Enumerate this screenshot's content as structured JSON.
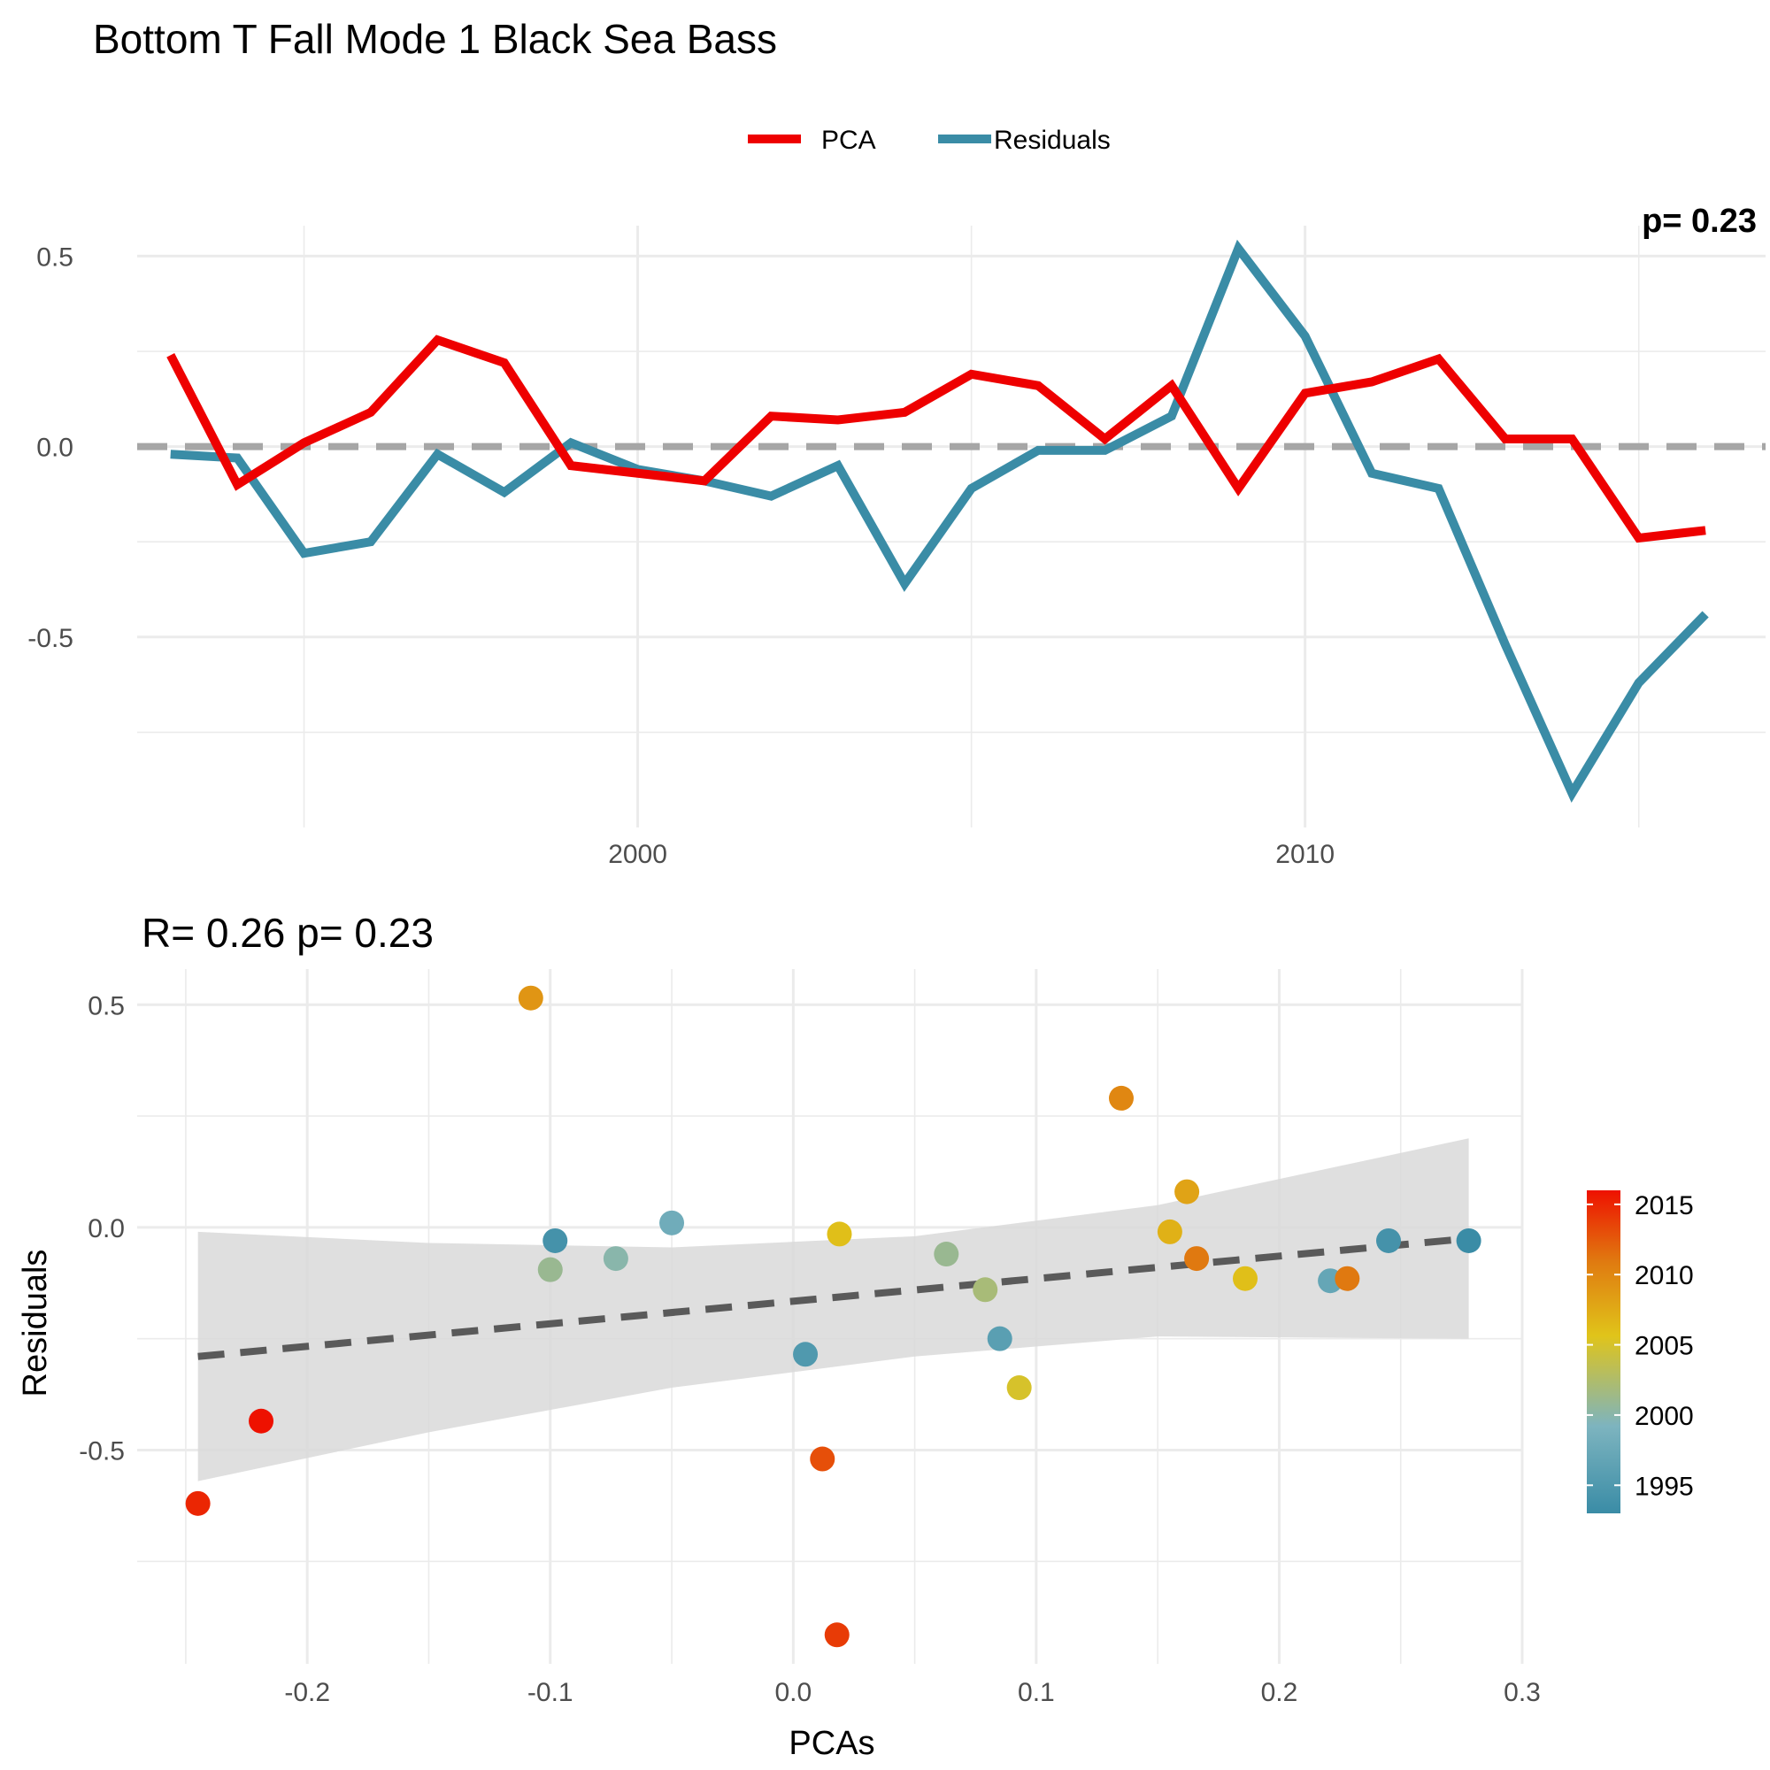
{
  "title": "Bottom T Fall Mode 1 Black Sea Bass",
  "chart_data": [
    {
      "type": "line",
      "legend": {
        "position": "top",
        "entries": [
          "PCA",
          "Residuals"
        ]
      },
      "x": [
        1993,
        1994,
        1995,
        1996,
        1997,
        1998,
        1999,
        2000,
        2001,
        2002,
        2003,
        2004,
        2005,
        2006,
        2007,
        2008,
        2009,
        2010,
        2011,
        2012,
        2013,
        2014,
        2015,
        2016
      ],
      "series": [
        {
          "name": "PCA",
          "color": "#ee0000",
          "values": [
            0.24,
            -0.1,
            0.01,
            0.09,
            0.28,
            0.22,
            -0.05,
            -0.07,
            -0.09,
            0.08,
            0.07,
            0.09,
            0.19,
            0.16,
            0.02,
            0.16,
            -0.11,
            0.14,
            0.17,
            0.23,
            0.02,
            0.02,
            -0.24,
            -0.22
          ]
        },
        {
          "name": "Residuals",
          "color": "#3a8ca6",
          "values": [
            -0.02,
            -0.03,
            -0.28,
            -0.25,
            -0.02,
            -0.12,
            0.01,
            -0.06,
            -0.09,
            -0.13,
            -0.05,
            -0.36,
            -0.11,
            -0.01,
            -0.01,
            0.08,
            0.52,
            0.29,
            -0.07,
            -0.11,
            -0.52,
            -0.91,
            -0.62,
            -0.44
          ]
        }
      ],
      "hline": 0,
      "xlim": [
        1992.5,
        2016.9
      ],
      "ylim": [
        -1.0,
        0.58
      ],
      "x_ticks": [
        2000,
        2010
      ],
      "y_ticks": [
        -0.5,
        0.0,
        0.5
      ],
      "y_tick_labels": [
        "-0.5",
        "0.0",
        "0.5"
      ],
      "corner_annotation": "p= 0.23",
      "grid": true
    },
    {
      "type": "scatter",
      "subtitle": "R= 0.26  p= 0.23",
      "xlabel": "PCAs",
      "ylabel": "Residuals",
      "xlim": [
        -0.27,
        0.3
      ],
      "ylim": [
        -0.98,
        0.58
      ],
      "x_ticks": [
        -0.2,
        -0.1,
        0.0,
        0.1,
        0.2,
        0.3
      ],
      "x_tick_labels": [
        "-0.2",
        "-0.1",
        "0.0",
        "0.1",
        "0.2",
        "0.3"
      ],
      "y_ticks": [
        -0.5,
        0.0,
        0.5
      ],
      "y_tick_labels": [
        "-0.5",
        "0.0",
        "0.5"
      ],
      "colorbar": {
        "ticks": [
          1995,
          2000,
          2005,
          2010,
          2015
        ],
        "min": 1993,
        "max": 2016,
        "colors": [
          "#3a8ca6",
          "#7db4bf",
          "#e0c41a",
          "#e07a10",
          "#ee1100"
        ]
      },
      "points": [
        {
          "x": 0.278,
          "y": -0.03,
          "year": 1993
        },
        {
          "x": 0.245,
          "y": -0.03,
          "year": 1994
        },
        {
          "x": 0.005,
          "y": -0.285,
          "year": 1995
        },
        {
          "x": 0.085,
          "y": -0.25,
          "year": 1996
        },
        {
          "x": -0.098,
          "y": -0.03,
          "year": 1994
        },
        {
          "x": 0.221,
          "y": -0.12,
          "year": 1997
        },
        {
          "x": -0.05,
          "y": 0.01,
          "year": 1998
        },
        {
          "x": 0.063,
          "y": -0.06,
          "year": 2001
        },
        {
          "x": -0.073,
          "y": -0.07,
          "year": 2000
        },
        {
          "x": -0.1,
          "y": -0.095,
          "year": 2001
        },
        {
          "x": 0.079,
          "y": -0.14,
          "year": 2002
        },
        {
          "x": 0.093,
          "y": -0.36,
          "year": 2005
        },
        {
          "x": 0.019,
          "y": -0.015,
          "year": 2006
        },
        {
          "x": 0.186,
          "y": -0.115,
          "year": 2006
        },
        {
          "x": 0.155,
          "y": -0.01,
          "year": 2007
        },
        {
          "x": 0.162,
          "y": 0.08,
          "year": 2008
        },
        {
          "x": -0.108,
          "y": 0.515,
          "year": 2009
        },
        {
          "x": 0.135,
          "y": 0.29,
          "year": 2010
        },
        {
          "x": 0.166,
          "y": -0.07,
          "year": 2011
        },
        {
          "x": 0.228,
          "y": -0.115,
          "year": 2011
        },
        {
          "x": 0.012,
          "y": -0.52,
          "year": 2013
        },
        {
          "x": 0.018,
          "y": -0.915,
          "year": 2014
        },
        {
          "x": -0.245,
          "y": -0.62,
          "year": 2015
        },
        {
          "x": -0.219,
          "y": -0.435,
          "year": 2016
        }
      ],
      "regression": {
        "x": [
          -0.245,
          0.278
        ],
        "y": [
          -0.29,
          -0.025
        ]
      },
      "confidence_band": {
        "x": [
          -0.245,
          -0.15,
          -0.05,
          0.05,
          0.15,
          0.278
        ],
        "upper": [
          -0.01,
          -0.035,
          -0.045,
          -0.02,
          0.05,
          0.2
        ],
        "lower": [
          -0.57,
          -0.46,
          -0.36,
          -0.29,
          -0.245,
          -0.25
        ]
      },
      "grid": true
    }
  ]
}
